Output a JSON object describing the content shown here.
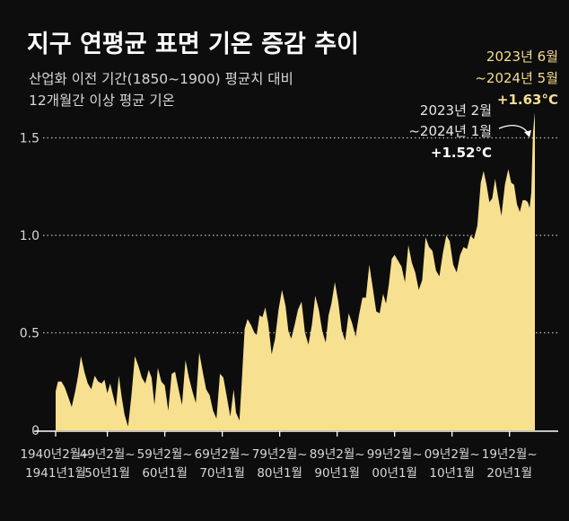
{
  "title": "지구 연평균 표면 기온 증감 추이",
  "subtitle_lines": [
    "산업화 이전 기간(1850~1900) 평균치 대비",
    "12개월간 이상 평균 기온"
  ],
  "colors": {
    "background": "#0d0d0d",
    "area": "#f7e08f",
    "text": "#ffffff",
    "highlight": "#f6dd8c"
  },
  "annotations": {
    "prev": {
      "line1": "2023년 2월",
      "line2": "~2024년 1월",
      "value": "+1.52°C"
    },
    "latest": {
      "line1": "2023년 6월",
      "line2": "~2024년 5월",
      "value": "+1.63°C"
    }
  },
  "chart_data": {
    "type": "area",
    "title": "지구 연평균 표면 기온 증감 추이",
    "subtitle": "산업화 이전 기간(1850~1900) 평균치 대비 12개월간 이상 평균 기온",
    "ylim": [
      0,
      1.7
    ],
    "yticks": [
      "0",
      "0.5",
      "1.0",
      "1.5"
    ],
    "grid": "dotted horizontal",
    "x_labels": [
      {
        "line1": "1940년2월~",
        "line2": "1941년1월"
      },
      {
        "line1": "49년2월~",
        "line2": "50년1월"
      },
      {
        "line1": "59년2월~",
        "line2": "60년1월"
      },
      {
        "line1": "69년2월~",
        "line2": "70년1월"
      },
      {
        "line1": "79년2월~",
        "line2": "80년1월"
      },
      {
        "line1": "89년2월~",
        "line2": "90년1월"
      },
      {
        "line1": "99년2월~",
        "line2": "00년1월"
      },
      {
        "line1": "09년2월~",
        "line2": "10년1월"
      },
      {
        "line1": "19년2월~",
        "line2": "20년1월"
      }
    ],
    "x_range": [
      1941.0,
      2024.42
    ],
    "x_label_positions": [
      1941.0,
      1950.0,
      1960.0,
      1970.0,
      1980.0,
      1990.0,
      2000.0,
      2010.0,
      2020.0
    ],
    "series": [
      {
        "x": [
          1941.0,
          1941.4,
          1942.0,
          1942.6,
          1943.2,
          1943.8,
          1944.4,
          1944.9,
          1945.4,
          1946.0,
          1946.6,
          1947.2,
          1947.8,
          1948.4,
          1949.0,
          1949.5,
          1950.0,
          1950.5,
          1950.9,
          1951.5,
          1952.0,
          1952.5,
          1953.0,
          1953.6,
          1954.2,
          1954.8,
          1955.4,
          1956.0,
          1956.6,
          1957.2,
          1957.7,
          1958.2,
          1958.8,
          1959.4,
          1960.0,
          1960.6,
          1961.2,
          1961.8,
          1962.4,
          1963.0,
          1963.6,
          1964.2,
          1964.8,
          1965.4,
          1966.0,
          1966.6,
          1967.2,
          1967.8,
          1968.4,
          1969.0,
          1969.6,
          1970.2,
          1970.8,
          1971.4,
          1972.0,
          1972.4,
          1973.0,
          1973.4,
          1973.9,
          1974.4,
          1975.0,
          1975.6,
          1976.0,
          1976.5,
          1977.0,
          1977.5,
          1978.0,
          1978.6,
          1979.2,
          1979.8,
          1980.4,
          1981.0,
          1981.5,
          1982.0,
          1982.6,
          1983.2,
          1983.8,
          1984.4,
          1985.0,
          1985.6,
          1986.2,
          1986.8,
          1987.4,
          1988.0,
          1988.5,
          1989.0,
          1989.6,
          1990.2,
          1990.8,
          1991.4,
          1992.0,
          1992.6,
          1993.2,
          1993.8,
          1994.4,
          1995.0,
          1995.6,
          1996.2,
          1996.8,
          1997.4,
          1998.0,
          1998.5,
          1999.0,
          1999.5,
          2000.0,
          2000.6,
          2001.2,
          2001.8,
          2002.4,
          2003.0,
          2003.6,
          2004.2,
          2004.8,
          2005.4,
          2006.0,
          2006.6,
          2007.2,
          2007.8,
          2008.4,
          2009.0,
          2009.6,
          2010.2,
          2010.8,
          2011.4,
          2012.0,
          2012.6,
          2013.2,
          2013.8,
          2014.4,
          2015.0,
          2015.5,
          2016.0,
          2016.5,
          2017.0,
          2017.5,
          2018.0,
          2018.6,
          2019.2,
          2019.8,
          2020.3,
          2020.8,
          2021.3,
          2021.8,
          2022.3,
          2022.8,
          2023.2,
          2023.5,
          2023.8,
          2024.08,
          2024.25,
          2024.42
        ],
        "values": [
          0.2,
          0.25,
          0.25,
          0.22,
          0.17,
          0.12,
          0.2,
          0.28,
          0.38,
          0.3,
          0.24,
          0.21,
          0.28,
          0.25,
          0.24,
          0.26,
          0.19,
          0.24,
          0.19,
          0.12,
          0.28,
          0.17,
          0.08,
          0.02,
          0.18,
          0.38,
          0.33,
          0.27,
          0.24,
          0.31,
          0.27,
          0.13,
          0.32,
          0.25,
          0.23,
          0.1,
          0.29,
          0.3,
          0.21,
          0.13,
          0.36,
          0.27,
          0.2,
          0.14,
          0.4,
          0.3,
          0.21,
          0.18,
          0.1,
          0.06,
          0.29,
          0.27,
          0.17,
          0.07,
          0.21,
          0.09,
          0.05,
          0.25,
          0.52,
          0.57,
          0.54,
          0.5,
          0.49,
          0.59,
          0.58,
          0.63,
          0.55,
          0.39,
          0.47,
          0.62,
          0.72,
          0.64,
          0.51,
          0.47,
          0.54,
          0.62,
          0.66,
          0.5,
          0.44,
          0.54,
          0.69,
          0.62,
          0.51,
          0.45,
          0.59,
          0.65,
          0.76,
          0.66,
          0.51,
          0.46,
          0.6,
          0.55,
          0.48,
          0.59,
          0.68,
          0.68,
          0.85,
          0.73,
          0.61,
          0.6,
          0.7,
          0.65,
          0.75,
          0.88,
          0.9,
          0.87,
          0.84,
          0.76,
          0.95,
          0.86,
          0.81,
          0.72,
          0.77,
          0.99,
          0.94,
          0.92,
          0.82,
          0.79,
          0.91,
          1.0,
          0.97,
          0.85,
          0.81,
          0.9,
          0.94,
          0.93,
          1.0,
          0.98,
          1.05,
          1.27,
          1.33,
          1.26,
          1.17,
          1.19,
          1.29,
          1.2,
          1.1,
          1.26,
          1.34,
          1.27,
          1.26,
          1.16,
          1.12,
          1.18,
          1.18,
          1.17,
          1.14,
          1.22,
          1.52,
          1.58,
          1.63
        ]
      }
    ]
  }
}
